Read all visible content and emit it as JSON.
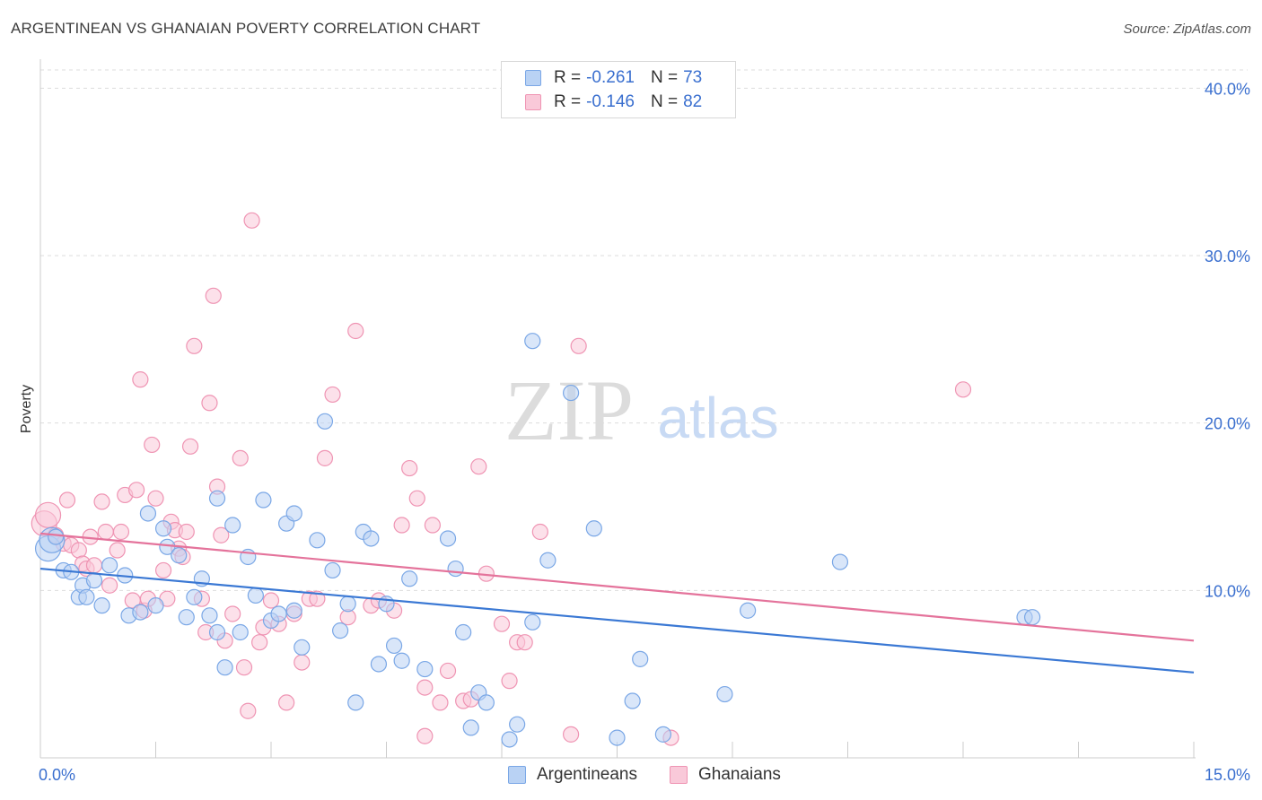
{
  "header": {
    "title": "ARGENTINEAN VS GHANAIAN POVERTY CORRELATION CHART",
    "source": "Source: ZipAtlas.com"
  },
  "watermark": {
    "zip": "ZIP",
    "atlas": "atlas"
  },
  "legend": {
    "rows": [
      {
        "r_label": "R =",
        "r_value": "-0.261",
        "n_label": "N =",
        "n_value": "73",
        "color": "#7aa7e6",
        "fill": "#b9d2f4"
      },
      {
        "r_label": "R =",
        "r_value": "-0.146",
        "n_label": "N =",
        "n_value": "82",
        "color": "#ef94b3",
        "fill": "#f9c9d9"
      }
    ]
  },
  "bottom_legend": [
    {
      "label": "Argentineans",
      "color": "#7aa7e6",
      "fill": "#b9d2f4"
    },
    {
      "label": "Ghanaians",
      "color": "#ef94b3",
      "fill": "#f9c9d9"
    }
  ],
  "chart_data": {
    "type": "scatter",
    "title": "ARGENTINEAN VS GHANAIAN POVERTY CORRELATION CHART",
    "xlabel": "",
    "ylabel": "Poverty",
    "xlim": [
      0,
      15
    ],
    "ylim": [
      0,
      42
    ],
    "x_tick_labels": [
      {
        "value": 0,
        "label": "0.0%"
      },
      {
        "value": 15,
        "label": "15.0%"
      }
    ],
    "y_tick_labels": [
      {
        "value": 10,
        "label": "10.0%"
      },
      {
        "value": 20,
        "label": "20.0%"
      },
      {
        "value": 30,
        "label": "30.0%"
      },
      {
        "value": 40,
        "label": "40.0%"
      }
    ],
    "x_minor_ticks": [
      1.5,
      3.0,
      4.5,
      6.0,
      7.5,
      9.0,
      10.5,
      12.0,
      13.5,
      15.0
    ],
    "grid": "horizontal dashed",
    "legend_position": "top-center",
    "series": [
      {
        "name": "Argentineans",
        "color": "#3a78d4",
        "marker_fill": "#b9d2f4",
        "marker_stroke": "#7aa7e6",
        "trend": {
          "x": [
            0,
            15
          ],
          "y": [
            11.3,
            5.1
          ]
        },
        "points": [
          [
            0.1,
            12.5
          ],
          [
            0.15,
            13.0
          ],
          [
            0.2,
            13.2
          ],
          [
            0.3,
            11.2
          ],
          [
            0.4,
            11.1
          ],
          [
            0.5,
            9.6
          ],
          [
            0.55,
            10.3
          ],
          [
            0.6,
            9.6
          ],
          [
            0.7,
            10.6
          ],
          [
            0.8,
            9.1
          ],
          [
            0.9,
            11.5
          ],
          [
            1.1,
            10.9
          ],
          [
            1.15,
            8.5
          ],
          [
            1.3,
            8.7
          ],
          [
            1.4,
            14.6
          ],
          [
            1.5,
            9.1
          ],
          [
            1.6,
            13.7
          ],
          [
            1.65,
            12.6
          ],
          [
            1.8,
            12.1
          ],
          [
            1.9,
            8.4
          ],
          [
            2.0,
            9.6
          ],
          [
            2.1,
            10.7
          ],
          [
            2.2,
            8.5
          ],
          [
            2.3,
            7.5
          ],
          [
            2.3,
            15.5
          ],
          [
            2.4,
            5.4
          ],
          [
            2.5,
            13.9
          ],
          [
            2.6,
            7.5
          ],
          [
            2.7,
            12.0
          ],
          [
            2.8,
            9.7
          ],
          [
            2.9,
            15.4
          ],
          [
            3.0,
            8.2
          ],
          [
            3.1,
            8.6
          ],
          [
            3.2,
            14.0
          ],
          [
            3.3,
            14.6
          ],
          [
            3.3,
            8.8
          ],
          [
            3.4,
            6.6
          ],
          [
            3.6,
            13.0
          ],
          [
            3.7,
            20.1
          ],
          [
            3.8,
            11.2
          ],
          [
            3.9,
            7.6
          ],
          [
            4.0,
            9.2
          ],
          [
            4.1,
            3.3
          ],
          [
            4.2,
            13.5
          ],
          [
            4.3,
            13.1
          ],
          [
            4.4,
            5.6
          ],
          [
            4.5,
            9.2
          ],
          [
            4.6,
            6.7
          ],
          [
            4.7,
            5.8
          ],
          [
            4.8,
            10.7
          ],
          [
            5.0,
            5.3
          ],
          [
            5.3,
            13.1
          ],
          [
            5.4,
            11.3
          ],
          [
            5.5,
            7.5
          ],
          [
            5.6,
            1.8
          ],
          [
            5.7,
            3.9
          ],
          [
            5.8,
            3.3
          ],
          [
            6.1,
            1.1
          ],
          [
            6.2,
            2.0
          ],
          [
            6.4,
            8.1
          ],
          [
            6.4,
            24.9
          ],
          [
            6.6,
            11.8
          ],
          [
            6.9,
            21.8
          ],
          [
            7.2,
            13.7
          ],
          [
            7.5,
            1.2
          ],
          [
            7.7,
            3.4
          ],
          [
            7.8,
            5.9
          ],
          [
            8.1,
            1.4
          ],
          [
            8.9,
            3.8
          ],
          [
            9.2,
            8.8
          ],
          [
            10.4,
            11.7
          ],
          [
            12.8,
            8.4
          ],
          [
            12.9,
            8.4
          ]
        ]
      },
      {
        "name": "Ghanaians",
        "color": "#e4739b",
        "marker_fill": "#f9c9d9",
        "marker_stroke": "#ef94b3",
        "trend": {
          "x": [
            0,
            15
          ],
          "y": [
            13.4,
            7.0
          ]
        },
        "points": [
          [
            0.05,
            14.0
          ],
          [
            0.1,
            14.5
          ],
          [
            0.2,
            13.3
          ],
          [
            0.3,
            12.8
          ],
          [
            0.35,
            15.4
          ],
          [
            0.4,
            12.7
          ],
          [
            0.5,
            12.4
          ],
          [
            0.55,
            11.6
          ],
          [
            0.6,
            11.3
          ],
          [
            0.65,
            13.2
          ],
          [
            0.7,
            11.5
          ],
          [
            0.8,
            15.3
          ],
          [
            0.85,
            13.5
          ],
          [
            0.9,
            10.3
          ],
          [
            1.0,
            12.4
          ],
          [
            1.05,
            13.5
          ],
          [
            1.1,
            15.7
          ],
          [
            1.2,
            9.4
          ],
          [
            1.25,
            16.0
          ],
          [
            1.3,
            22.6
          ],
          [
            1.35,
            8.8
          ],
          [
            1.4,
            9.5
          ],
          [
            1.45,
            18.7
          ],
          [
            1.5,
            15.5
          ],
          [
            1.6,
            11.2
          ],
          [
            1.65,
            9.5
          ],
          [
            1.7,
            14.1
          ],
          [
            1.75,
            13.6
          ],
          [
            1.8,
            12.5
          ],
          [
            1.85,
            12.0
          ],
          [
            1.9,
            13.5
          ],
          [
            1.95,
            18.6
          ],
          [
            2.0,
            24.6
          ],
          [
            2.1,
            9.5
          ],
          [
            2.15,
            7.5
          ],
          [
            2.2,
            21.2
          ],
          [
            2.25,
            27.6
          ],
          [
            2.3,
            16.2
          ],
          [
            2.35,
            13.3
          ],
          [
            2.4,
            7.0
          ],
          [
            2.5,
            8.6
          ],
          [
            2.6,
            17.9
          ],
          [
            2.65,
            5.4
          ],
          [
            2.7,
            2.8
          ],
          [
            2.75,
            32.1
          ],
          [
            2.85,
            6.9
          ],
          [
            2.9,
            7.8
          ],
          [
            3.0,
            9.4
          ],
          [
            3.1,
            8.0
          ],
          [
            3.2,
            3.3
          ],
          [
            3.3,
            8.6
          ],
          [
            3.4,
            5.7
          ],
          [
            3.5,
            9.5
          ],
          [
            3.6,
            9.5
          ],
          [
            3.7,
            17.9
          ],
          [
            3.8,
            21.7
          ],
          [
            4.0,
            8.4
          ],
          [
            4.1,
            25.5
          ],
          [
            4.3,
            9.1
          ],
          [
            4.4,
            9.4
          ],
          [
            4.6,
            8.8
          ],
          [
            4.7,
            13.9
          ],
          [
            4.8,
            17.3
          ],
          [
            4.9,
            15.5
          ],
          [
            5.0,
            4.2
          ],
          [
            5.0,
            1.3
          ],
          [
            5.1,
            13.9
          ],
          [
            5.2,
            3.3
          ],
          [
            5.3,
            5.2
          ],
          [
            5.5,
            3.4
          ],
          [
            5.6,
            3.5
          ],
          [
            5.7,
            17.4
          ],
          [
            5.8,
            11.0
          ],
          [
            6.0,
            8.0
          ],
          [
            6.1,
            4.6
          ],
          [
            6.2,
            6.9
          ],
          [
            6.3,
            6.9
          ],
          [
            6.5,
            13.5
          ],
          [
            6.9,
            1.4
          ],
          [
            7.0,
            24.6
          ],
          [
            8.2,
            1.2
          ],
          [
            12.0,
            22.0
          ]
        ]
      }
    ]
  }
}
